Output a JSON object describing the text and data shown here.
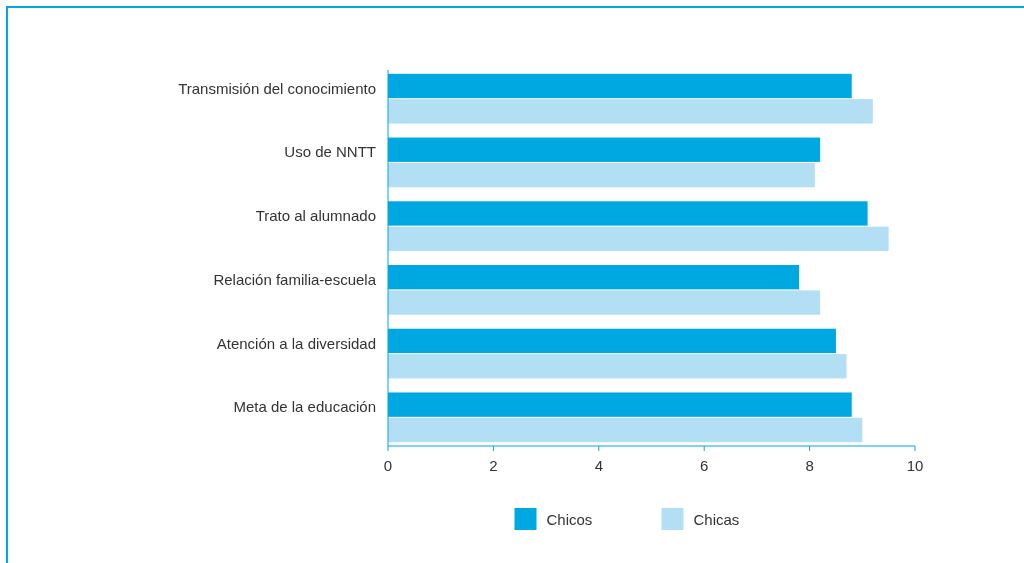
{
  "chart_data": {
    "type": "bar",
    "orientation": "horizontal",
    "categories": [
      "Transmisión del conocimiento",
      "Uso de NNTT",
      "Trato al alumnado",
      "Relación familia-escuela",
      "Atención a la diversidad",
      "Meta de la educación"
    ],
    "series": [
      {
        "name": "Chicos",
        "color": "#00a8e1",
        "values": [
          8.8,
          8.2,
          9.1,
          7.8,
          8.5,
          8.8
        ]
      },
      {
        "name": "Chicas",
        "color": "#b3dff5",
        "values": [
          9.2,
          8.1,
          9.5,
          8.2,
          8.7,
          9.0
        ]
      }
    ],
    "xlim": [
      0,
      10
    ],
    "xticks": [
      0,
      2,
      4,
      6,
      8,
      10
    ],
    "grid": false,
    "legend": "bottom"
  }
}
